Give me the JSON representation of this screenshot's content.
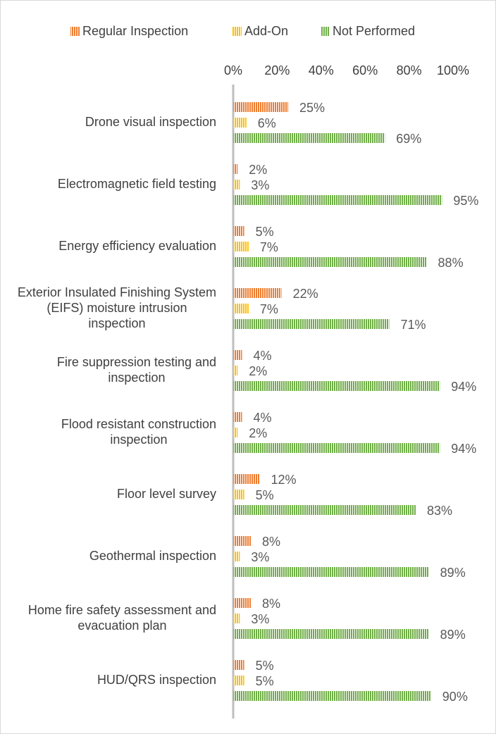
{
  "chart_data": {
    "type": "bar",
    "orientation": "horizontal",
    "categories": [
      "Drone visual inspection",
      "Electromagnetic field testing",
      "Energy efficiency evaluation",
      "Exterior Insulated Finishing System (EIFS) moisture intrusion inspection",
      "Fire suppression testing and inspection",
      "Flood resistant construction inspection",
      "Floor level survey",
      "Geothermal inspection",
      "Home fire safety assessment and evacuation plan",
      "HUD/QRS inspection"
    ],
    "series": [
      {
        "name": "Regular Inspection",
        "color": "#ED7D31",
        "values": [
          25,
          2,
          5,
          22,
          4,
          4,
          12,
          8,
          8,
          5
        ],
        "value_labels": [
          "25%",
          "2%",
          "5%",
          "22%",
          "4%",
          "4%",
          "12%",
          "8%",
          "8%",
          "5%"
        ]
      },
      {
        "name": "Add-On",
        "color": "#FFC000",
        "values": [
          6,
          3,
          7,
          7,
          2,
          2,
          5,
          3,
          3,
          5
        ],
        "value_labels": [
          "6%",
          "3%",
          "7%",
          "7%",
          "2%",
          "2%",
          "5%",
          "3%",
          "3%",
          "5%"
        ]
      },
      {
        "name": "Not Performed",
        "color": "#70AD47",
        "values": [
          69,
          95,
          88,
          71,
          94,
          94,
          83,
          89,
          89,
          90
        ],
        "value_labels": [
          "69%",
          "95%",
          "88%",
          "71%",
          "94%",
          "94%",
          "83%",
          "89%",
          "89%",
          "90%"
        ]
      }
    ],
    "xlim": [
      0,
      100
    ],
    "xticks": [
      {
        "value": 0,
        "label": "0%"
      },
      {
        "value": 20,
        "label": "20%"
      },
      {
        "value": 40,
        "label": "40%"
      },
      {
        "value": 60,
        "label": "60%"
      },
      {
        "value": 80,
        "label": "80%"
      },
      {
        "value": 100,
        "label": "100%"
      }
    ],
    "legend": "top"
  }
}
